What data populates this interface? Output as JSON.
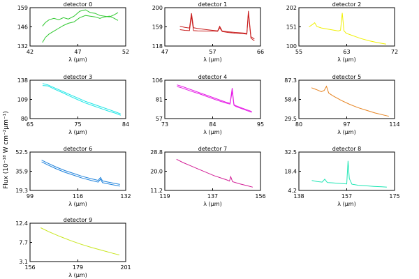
{
  "figure": {
    "ylabel": "Flux (10⁻¹⁸ W cm⁻²μm⁻¹)"
  },
  "chart_data": [
    {
      "type": "line",
      "title": "detector 0",
      "xlabel": "λ (μm)",
      "xlim": [
        42,
        52
      ],
      "ylim": [
        132,
        159
      ],
      "xticks": [
        "42",
        "47",
        "52"
      ],
      "yticks": [
        "132",
        "146",
        "159"
      ],
      "color": "#2ec82e",
      "series": [
        {
          "x": [
            43.3,
            43.6,
            44.0,
            44.5,
            45.0,
            45.5,
            46.0,
            46.6,
            47.2,
            47.8,
            48.3,
            48.8,
            49.3,
            49.8,
            50.3,
            50.8,
            51.2
          ],
          "values": [
            146.0,
            148.5,
            150.5,
            151.5,
            150.5,
            152.0,
            151.0,
            153.0,
            156.5,
            157.5,
            155.5,
            155.0,
            153.5,
            153.0,
            152.5,
            154.0,
            155.5
          ]
        },
        {
          "x": [
            43.3,
            43.6,
            44.0,
            44.5,
            45.0,
            45.5,
            46.0,
            46.6,
            47.2,
            47.8,
            48.3,
            48.8,
            49.3,
            49.8,
            50.3,
            50.8,
            51.2
          ],
          "values": [
            134.5,
            138.0,
            140.5,
            142.5,
            144.5,
            146.5,
            148.0,
            149.0,
            152.0,
            153.5,
            153.0,
            152.5,
            151.5,
            152.5,
            153.0,
            151.5,
            150.0
          ]
        }
      ]
    },
    {
      "type": "line",
      "title": "detector 1",
      "xlabel": "λ (μm)",
      "xlim": [
        47,
        66
      ],
      "ylim": [
        118,
        200
      ],
      "xticks": [
        "47",
        "57",
        "66"
      ],
      "yticks": [
        "118",
        "159",
        "200"
      ],
      "color": "#c81e1e",
      "series": [
        {
          "x": [
            50.0,
            51.0,
            51.9,
            52.3,
            52.7,
            53.5,
            55.0,
            56.5,
            57.5,
            57.9,
            58.4,
            59.5,
            61.0,
            62.5,
            63.3,
            63.6,
            64.1,
            64.8
          ],
          "values": [
            160.0,
            158.0,
            156.5,
            188.0,
            157.0,
            155.5,
            153.5,
            151.5,
            150.5,
            160.0,
            150.0,
            148.5,
            147.0,
            146.0,
            145.0,
            193.0,
            138.0,
            133.0
          ]
        },
        {
          "x": [
            50.0,
            51.0,
            51.9,
            52.3,
            52.7,
            53.5,
            55.0,
            56.5,
            57.5,
            57.9,
            58.4,
            59.5,
            61.0,
            62.5,
            63.3,
            63.6,
            64.1,
            64.8
          ],
          "values": [
            153.0,
            151.5,
            151.0,
            182.0,
            151.0,
            150.5,
            150.0,
            150.0,
            149.5,
            157.0,
            149.0,
            147.0,
            145.5,
            144.5,
            143.5,
            188.0,
            135.0,
            129.0
          ]
        }
      ]
    },
    {
      "type": "line",
      "title": "detector 2",
      "xlabel": "λ (μm)",
      "xlim": [
        55,
        72
      ],
      "ylim": [
        100,
        202
      ],
      "xticks": [
        "55",
        "63",
        "72"
      ],
      "yticks": [
        "100",
        "151",
        "202"
      ],
      "color": "#f0f000",
      "series": [
        {
          "x": [
            56.8,
            57.5,
            57.8,
            58.2,
            59.0,
            60.5,
            62.0,
            62.4,
            62.7,
            63.0,
            63.4,
            64.5,
            66.0,
            67.5,
            69.0,
            70.5
          ],
          "values": [
            151.0,
            158.0,
            162.0,
            152.0,
            148.0,
            144.0,
            140.0,
            142.0,
            188.0,
            141.0,
            134.0,
            128.0,
            120.0,
            114.0,
            109.0,
            105.0
          ]
        }
      ]
    },
    {
      "type": "line",
      "title": "detector 3",
      "xlabel": "λ (μm)",
      "xlim": [
        65,
        84
      ],
      "ylim": [
        80,
        138
      ],
      "xticks": [
        "65",
        "75",
        "84"
      ],
      "yticks": [
        "80",
        "109",
        "138"
      ],
      "color": "#1ee6e6",
      "series": [
        {
          "x": [
            67.5,
            68.5,
            70.0,
            71.5,
            73.0,
            74.5,
            76.0,
            77.5,
            79.0,
            80.5,
            82.0,
            83.0
          ],
          "values": [
            133.0,
            131.0,
            126.0,
            121.0,
            116.0,
            111.0,
            106.0,
            102.0,
            98.0,
            94.0,
            90.0,
            87.0
          ]
        },
        {
          "x": [
            67.5,
            68.5,
            70.0,
            71.5,
            73.0,
            74.5,
            76.0,
            77.5,
            79.0,
            80.5,
            82.0,
            83.0
          ],
          "values": [
            130.0,
            129.5,
            124.0,
            119.0,
            113.5,
            108.5,
            103.5,
            99.5,
            95.5,
            91.5,
            88.0,
            85.0
          ]
        }
      ]
    },
    {
      "type": "line",
      "title": "detector 4",
      "xlabel": "λ (μm)",
      "xlim": [
        73,
        95
      ],
      "ylim": [
        57,
        106
      ],
      "xticks": [
        "73",
        "84",
        "95"
      ],
      "yticks": [
        "57",
        "81",
        "106"
      ],
      "color": "#e61ee6",
      "series": [
        {
          "x": [
            75.8,
            77.0,
            79.0,
            81.0,
            83.0,
            85.0,
            87.0,
            88.0,
            88.5,
            88.9,
            89.3,
            90.5,
            92.0,
            93.0
          ],
          "values": [
            100.0,
            98.0,
            94.0,
            90.0,
            86.0,
            82.0,
            78.0,
            76.5,
            96.0,
            75.0,
            73.5,
            71.0,
            68.0,
            66.0
          ]
        },
        {
          "x": [
            75.8,
            77.0,
            79.0,
            81.0,
            83.0,
            85.0,
            87.0,
            88.0,
            88.5,
            88.9,
            89.3,
            90.5,
            92.0,
            93.0
          ],
          "values": [
            98.0,
            96.0,
            92.0,
            88.5,
            84.5,
            80.5,
            77.0,
            75.5,
            92.0,
            74.0,
            72.5,
            70.0,
            67.0,
            65.0
          ]
        }
      ]
    },
    {
      "type": "line",
      "title": "detector 5",
      "xlabel": "λ (μm)",
      "xlim": [
        80,
        114
      ],
      "ylim": [
        29.5,
        87.3
      ],
      "xticks": [
        "80",
        "97",
        "114"
      ],
      "yticks": [
        "29.5",
        "58.4",
        "87.3"
      ],
      "color": "#e6821e",
      "series": [
        {
          "x": [
            84.5,
            86.0,
            88.0,
            89.0,
            89.8,
            90.6,
            92.0,
            95.0,
            98.0,
            101.0,
            104.0,
            107.0,
            110.0,
            112.0
          ],
          "values": [
            76.0,
            73.5,
            70.0,
            72.0,
            78.0,
            68.0,
            64.0,
            57.0,
            51.0,
            46.0,
            42.0,
            38.0,
            35.0,
            33.0
          ]
        }
      ]
    },
    {
      "type": "line",
      "title": "detector 6",
      "xlabel": "λ (μm)",
      "xlim": [
        99,
        132
      ],
      "ylim": [
        19.3,
        52.5
      ],
      "xticks": [
        "99",
        "116",
        "132"
      ],
      "yticks": [
        "19.3",
        "35.9",
        "52.5"
      ],
      "color": "#1e82dc",
      "series": [
        {
          "x": [
            103.0,
            105.0,
            108.0,
            111.0,
            114.0,
            117.0,
            120.0,
            122.5,
            123.3,
            124.0,
            126.0,
            128.0,
            130.0
          ],
          "values": [
            45.5,
            43.0,
            39.5,
            36.5,
            34.0,
            31.5,
            29.5,
            28.0,
            30.5,
            27.5,
            26.5,
            25.5,
            24.5
          ]
        },
        {
          "x": [
            103.0,
            105.0,
            108.0,
            111.0,
            114.0,
            117.0,
            120.0,
            122.5,
            123.3,
            124.0,
            126.0,
            128.0,
            130.0
          ],
          "values": [
            44.0,
            41.5,
            38.0,
            35.0,
            32.5,
            30.0,
            28.0,
            26.5,
            29.0,
            26.0,
            25.0,
            24.0,
            23.0
          ]
        }
      ]
    },
    {
      "type": "line",
      "title": "detector 7",
      "xlabel": "λ (μm)",
      "xlim": [
        119,
        156
      ],
      "ylim": [
        11.2,
        28.8
      ],
      "xticks": [
        "119",
        "137",
        "156"
      ],
      "yticks": [
        "11.2",
        "20.0",
        "28.8"
      ],
      "color": "#d21e96",
      "series": [
        {
          "x": [
            123.5,
            126.0,
            129.0,
            132.0,
            135.0,
            138.0,
            141.0,
            143.0,
            144.0,
            144.5,
            145.2,
            148.0,
            151.0,
            153.0
          ],
          "values": [
            25.5,
            24.0,
            22.5,
            21.0,
            19.5,
            18.0,
            16.8,
            16.0,
            15.5,
            17.5,
            15.2,
            14.2,
            13.3,
            12.7
          ]
        }
      ]
    },
    {
      "type": "line",
      "title": "detector 8",
      "xlabel": "λ (μm)",
      "xlim": [
        138,
        175
      ],
      "ylim": [
        4.2,
        32.5
      ],
      "xticks": [
        "138",
        "157",
        "175"
      ],
      "yticks": [
        "4.2",
        "18.4",
        "32.5"
      ],
      "color": "#1ee6b4",
      "series": [
        {
          "x": [
            143.0,
            145.0,
            147.0,
            148.0,
            149.0,
            151.0,
            153.0,
            155.0,
            156.5,
            157.0,
            157.5,
            158.5,
            161.0,
            164.0,
            167.0,
            170.0,
            172.0
          ],
          "values": [
            11.5,
            10.8,
            10.3,
            12.5,
            10.0,
            9.8,
            9.5,
            9.2,
            9.0,
            26.0,
            13.0,
            8.8,
            8.0,
            7.6,
            7.2,
            6.9,
            6.6
          ]
        }
      ]
    },
    {
      "type": "line",
      "title": "detector 9",
      "xlabel": "λ (μm)",
      "xlim": [
        156,
        201
      ],
      "ylim": [
        3.1,
        12.4
      ],
      "xticks": [
        "156",
        "179",
        "201"
      ],
      "yticks": [
        "3.1",
        "7.7",
        "12.4"
      ],
      "color": "#c8e61e",
      "series": [
        {
          "x": [
            161.0,
            165.0,
            170.0,
            175.0,
            180.0,
            185.0,
            190.0,
            195.0,
            198.0
          ],
          "values": [
            11.3,
            10.3,
            9.2,
            8.2,
            7.3,
            6.5,
            5.8,
            5.1,
            4.7
          ]
        }
      ]
    }
  ]
}
